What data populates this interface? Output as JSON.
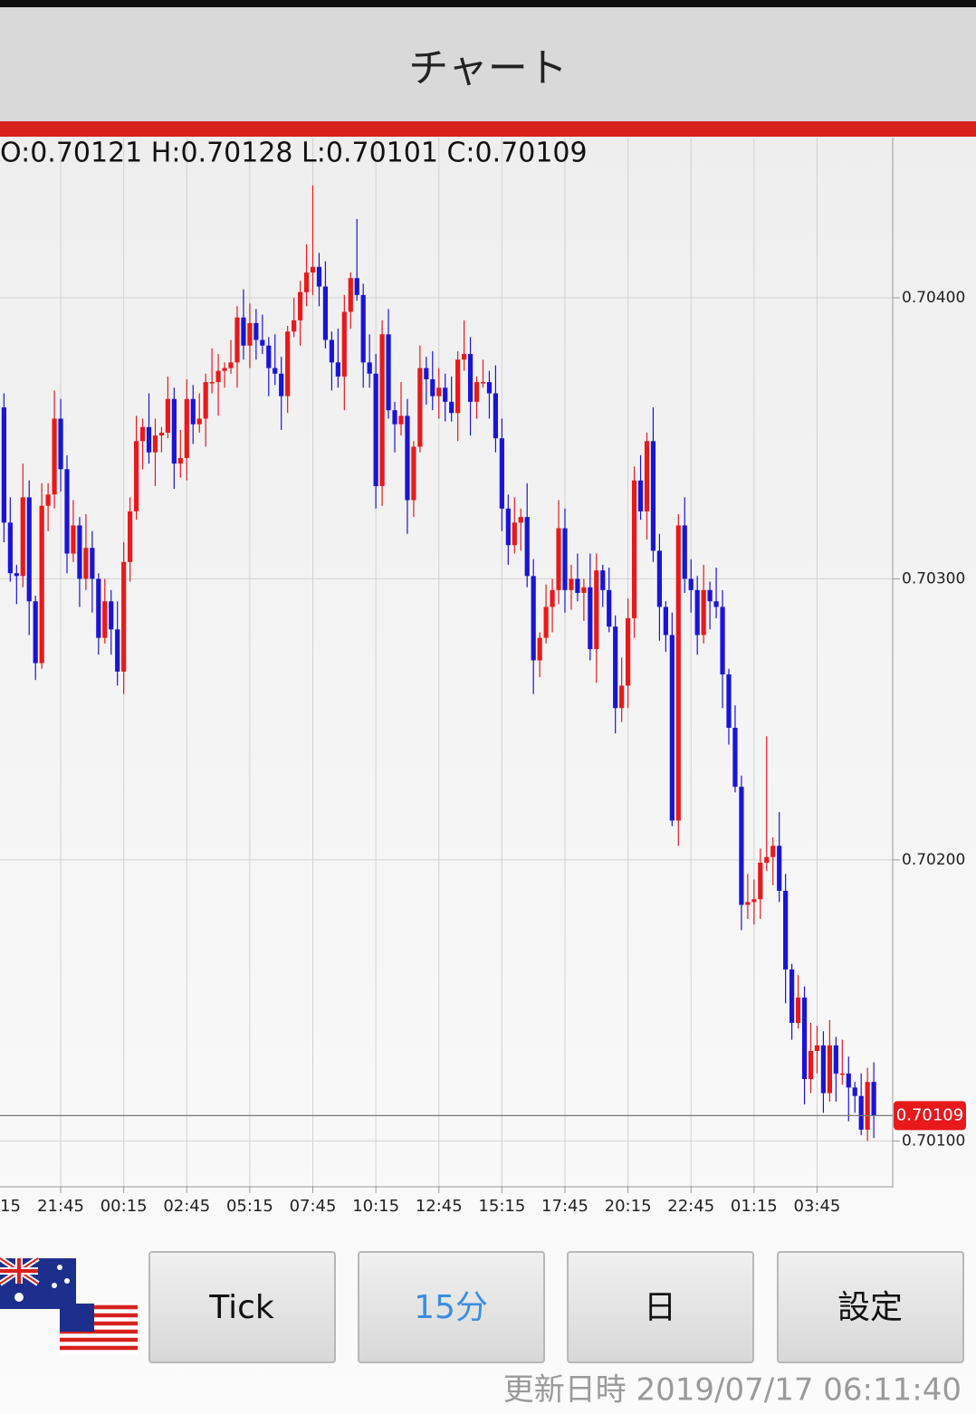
{
  "header": {
    "title": "チャート"
  },
  "chart_data": {
    "type": "candlestick",
    "ohlc_label": "O:0.70121 H:0.70128 L:0.70101 C:0.70109",
    "up_color": "#e8191b",
    "down_color": "#1a14d6",
    "grid": true,
    "last_price": 0.70109,
    "xlim": [
      -0.63,
      141
    ],
    "ylim": [
      0.70084,
      0.70457
    ],
    "yticks": [
      {
        "value": 0.704,
        "label": "0.70400"
      },
      {
        "value": 0.703,
        "label": "0.70300"
      },
      {
        "value": 0.702,
        "label": "0.70200"
      },
      {
        "value": 0.701,
        "label": "0.70100"
      }
    ],
    "xticks": [
      {
        "value": -1,
        "label": "15"
      },
      {
        "value": 9,
        "label": "21:45"
      },
      {
        "value": 19,
        "label": "00:15"
      },
      {
        "value": 29,
        "label": "02:45"
      },
      {
        "value": 39,
        "label": "05:15"
      },
      {
        "value": 49,
        "label": "07:45"
      },
      {
        "value": 59,
        "label": "10:15"
      },
      {
        "value": 69,
        "label": "12:45"
      },
      {
        "value": 79,
        "label": "15:15"
      },
      {
        "value": 89,
        "label": "17:45"
      },
      {
        "value": 99,
        "label": "20:15"
      },
      {
        "value": 109,
        "label": "22:45"
      },
      {
        "value": 119,
        "label": "01:15"
      },
      {
        "value": 129,
        "label": "03:45"
      }
    ],
    "open": [
      0.70361,
      0.7032,
      0.70302,
      0.70301,
      0.70329,
      0.70292,
      0.7027,
      0.70326,
      0.7033,
      0.70357,
      0.70339,
      0.70309,
      0.70319,
      0.703,
      0.70311,
      0.703,
      0.70279,
      0.70292,
      0.70282,
      0.70267,
      0.70306,
      0.70324,
      0.70349,
      0.70354,
      0.70345,
      0.70351,
      0.70352,
      0.70364,
      0.70341,
      0.70343,
      0.70364,
      0.70355,
      0.70357,
      0.7037,
      0.7037,
      0.70374,
      0.70375,
      0.70377,
      0.70393,
      0.70383,
      0.70391,
      0.70385,
      0.70383,
      0.70375,
      0.70373,
      0.70365,
      0.70388,
      0.70392,
      0.70402,
      0.70409,
      0.70411,
      0.70404,
      0.70385,
      0.70377,
      0.70372,
      0.70395,
      0.70407,
      0.70401,
      0.70377,
      0.70373,
      0.70333,
      0.70387,
      0.7036,
      0.70355,
      0.70358,
      0.70328,
      0.70347,
      0.70375,
      0.70371,
      0.70365,
      0.70368,
      0.70363,
      0.70359,
      0.70378,
      0.7038,
      0.70363,
      0.7037,
      0.7037,
      0.70366,
      0.7035,
      0.70325,
      0.70312,
      0.7032,
      0.70322,
      0.70301,
      0.70271,
      0.70279,
      0.7029,
      0.70296,
      0.70318,
      0.70296,
      0.703,
      0.70295,
      0.70297,
      0.70275,
      0.70303,
      0.70296,
      0.70283,
      0.70254,
      0.70262,
      0.70286,
      0.70335,
      0.70324,
      0.70349,
      0.7031,
      0.7029,
      0.7028,
      0.70214,
      0.70319,
      0.703,
      0.70296,
      0.7028,
      0.70296,
      0.70292,
      0.7029,
      0.70266,
      0.70247,
      0.70226,
      0.70184,
      0.70185,
      0.70186,
      0.70199,
      0.70201,
      0.70205,
      0.70189,
      0.70161,
      0.70142,
      0.70151,
      0.70122,
      0.70132,
      0.70134,
      0.70117,
      0.70134,
      0.70124,
      0.70124,
      0.70119,
      0.70116,
      0.70104,
      0.70121
    ],
    "high": [
      0.70366,
      0.70329,
      0.70305,
      0.70341,
      0.70335,
      0.70294,
      0.70334,
      0.70334,
      0.70367,
      0.70364,
      0.70344,
      0.70328,
      0.70322,
      0.70323,
      0.70317,
      0.70302,
      0.703,
      0.70296,
      0.70292,
      0.70313,
      0.70329,
      0.70358,
      0.70357,
      0.70366,
      0.70357,
      0.70354,
      0.70372,
      0.70368,
      0.70353,
      0.70371,
      0.70369,
      0.70366,
      0.70373,
      0.70382,
      0.7038,
      0.70377,
      0.70385,
      0.70397,
      0.70403,
      0.70398,
      0.70396,
      0.70394,
      0.70386,
      0.70387,
      0.70379,
      0.7039,
      0.704,
      0.70406,
      0.70419,
      0.7044,
      0.70416,
      0.70413,
      0.70388,
      0.70389,
      0.70401,
      0.70409,
      0.70428,
      0.70405,
      0.70387,
      0.7038,
      0.70392,
      0.70396,
      0.70363,
      0.7037,
      0.70364,
      0.70349,
      0.70383,
      0.70379,
      0.70381,
      0.70375,
      0.70373,
      0.70372,
      0.70381,
      0.70392,
      0.70386,
      0.70372,
      0.70378,
      0.70374,
      0.70376,
      0.70357,
      0.7033,
      0.70329,
      0.70325,
      0.70334,
      0.70307,
      0.70281,
      0.70298,
      0.703,
      0.70328,
      0.70325,
      0.70305,
      0.70309,
      0.703,
      0.70309,
      0.70309,
      0.70305,
      0.70304,
      0.70287,
      0.70272,
      0.70293,
      0.7034,
      0.70344,
      0.70352,
      0.70361,
      0.70316,
      0.70292,
      0.70288,
      0.70323,
      0.70329,
      0.70307,
      0.70301,
      0.70305,
      0.70299,
      0.70304,
      0.70296,
      0.70268,
      0.70255,
      0.7023,
      0.70195,
      0.70193,
      0.70204,
      0.70244,
      0.70208,
      0.70217,
      0.70195,
      0.70163,
      0.70159,
      0.70155,
      0.70142,
      0.70141,
      0.70139,
      0.70143,
      0.70137,
      0.70136,
      0.7013,
      0.70121,
      0.70124,
      0.70126,
      0.70128
    ],
    "low": [
      0.70313,
      0.70299,
      0.70291,
      0.70297,
      0.7028,
      0.70264,
      0.70268,
      0.70317,
      0.70325,
      0.70331,
      0.70302,
      0.70306,
      0.7029,
      0.70296,
      0.70288,
      0.70273,
      0.70277,
      0.70273,
      0.70262,
      0.70259,
      0.70299,
      0.70321,
      0.70339,
      0.70341,
      0.70333,
      0.70345,
      0.7035,
      0.70332,
      0.70336,
      0.70335,
      0.70348,
      0.70352,
      0.70347,
      0.70366,
      0.70358,
      0.70368,
      0.70373,
      0.70368,
      0.70378,
      0.70375,
      0.70378,
      0.7038,
      0.70365,
      0.70369,
      0.70353,
      0.70359,
      0.70386,
      0.70383,
      0.70397,
      0.70401,
      0.70397,
      0.70382,
      0.70367,
      0.70368,
      0.7036,
      0.70389,
      0.70399,
      0.70368,
      0.70368,
      0.70325,
      0.70326,
      0.70357,
      0.70345,
      0.70351,
      0.70316,
      0.70322,
      0.70345,
      0.70362,
      0.7036,
      0.70357,
      0.70356,
      0.70356,
      0.70349,
      0.70374,
      0.70351,
      0.70357,
      0.70368,
      0.70357,
      0.70345,
      0.70317,
      0.70305,
      0.70309,
      0.7031,
      0.70297,
      0.70259,
      0.70265,
      0.70277,
      0.70281,
      0.70291,
      0.70288,
      0.70289,
      0.70292,
      0.70285,
      0.70271,
      0.70263,
      0.7029,
      0.70281,
      0.70245,
      0.70249,
      0.70254,
      0.70279,
      0.70321,
      0.70314,
      0.70306,
      0.70278,
      0.70274,
      0.70212,
      0.70205,
      0.70295,
      0.70288,
      0.70273,
      0.70277,
      0.70282,
      0.70286,
      0.70254,
      0.70241,
      0.70224,
      0.70175,
      0.70179,
      0.70177,
      0.70179,
      0.70196,
      0.70191,
      0.70185,
      0.70149,
      0.70136,
      0.7014,
      0.70113,
      0.70117,
      0.70124,
      0.7011,
      0.70114,
      0.70114,
      0.7012,
      0.70107,
      0.7011,
      0.70102,
      0.701,
      0.70101
    ],
    "close": [
      0.7032,
      0.70302,
      0.70301,
      0.70329,
      0.70292,
      0.7027,
      0.70326,
      0.7033,
      0.70357,
      0.70339,
      0.70309,
      0.70319,
      0.703,
      0.70311,
      0.703,
      0.70279,
      0.70292,
      0.70282,
      0.70267,
      0.70306,
      0.70324,
      0.70349,
      0.70354,
      0.70345,
      0.70351,
      0.70352,
      0.70364,
      0.70341,
      0.70343,
      0.70364,
      0.70355,
      0.70357,
      0.7037,
      0.7037,
      0.70374,
      0.70375,
      0.70377,
      0.70393,
      0.70383,
      0.70391,
      0.70385,
      0.70383,
      0.70375,
      0.70373,
      0.70365,
      0.70388,
      0.70392,
      0.70402,
      0.70409,
      0.70411,
      0.70404,
      0.70385,
      0.70377,
      0.70372,
      0.70395,
      0.70407,
      0.70401,
      0.70377,
      0.70373,
      0.70333,
      0.70387,
      0.7036,
      0.70355,
      0.70358,
      0.70328,
      0.70347,
      0.70375,
      0.70371,
      0.70365,
      0.70368,
      0.70363,
      0.70359,
      0.70378,
      0.7038,
      0.70363,
      0.7037,
      0.7037,
      0.70366,
      0.7035,
      0.70325,
      0.70312,
      0.7032,
      0.70322,
      0.70301,
      0.70271,
      0.70279,
      0.7029,
      0.70296,
      0.70318,
      0.70296,
      0.703,
      0.70295,
      0.70297,
      0.70275,
      0.70303,
      0.70296,
      0.70283,
      0.70254,
      0.70262,
      0.70286,
      0.70335,
      0.70324,
      0.70349,
      0.7031,
      0.7029,
      0.7028,
      0.70214,
      0.70319,
      0.703,
      0.70296,
      0.7028,
      0.70296,
      0.70292,
      0.7029,
      0.70266,
      0.70247,
      0.70226,
      0.70184,
      0.70185,
      0.70186,
      0.70199,
      0.70201,
      0.70205,
      0.70189,
      0.70161,
      0.70142,
      0.70151,
      0.70122,
      0.70132,
      0.70134,
      0.70117,
      0.70134,
      0.70124,
      0.70124,
      0.70119,
      0.70116,
      0.70104,
      0.70121,
      0.70109
    ]
  },
  "buttons": [
    "Tick",
    "15分",
    "日",
    "設定"
  ],
  "footer": "更新日時 2019/07/17 06:11:40"
}
